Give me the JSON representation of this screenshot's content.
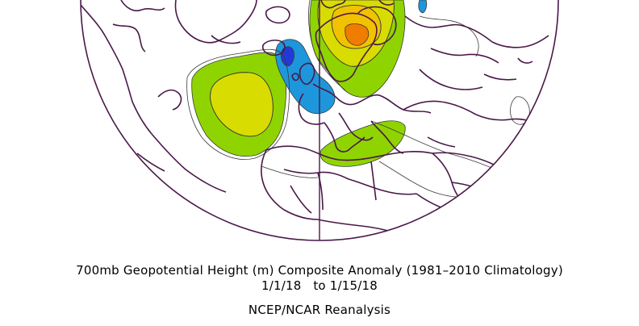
{
  "title": "700mb Geopotential Height (m) Composite Anomaly (1981–2010 Climatology)",
  "date_range": "1/1/18   to 1/15/18",
  "source": "NCEP/NCAR Reanalysis",
  "map": {
    "projection": "polar stereographic (Northern Hemisphere, Atlantic/Europe sector)",
    "colors": {
      "coastline": "#4a1848",
      "contour": "#3a3a3a",
      "anomaly_pos_1": "#8fd400",
      "anomaly_pos_2": "#d8dc00",
      "anomaly_pos_3": "#f2c200",
      "anomaly_pos_4": "#f07c00",
      "anomaly_neg_1": "#1e96dc",
      "anomaly_neg_2": "#2438d8"
    }
  }
}
